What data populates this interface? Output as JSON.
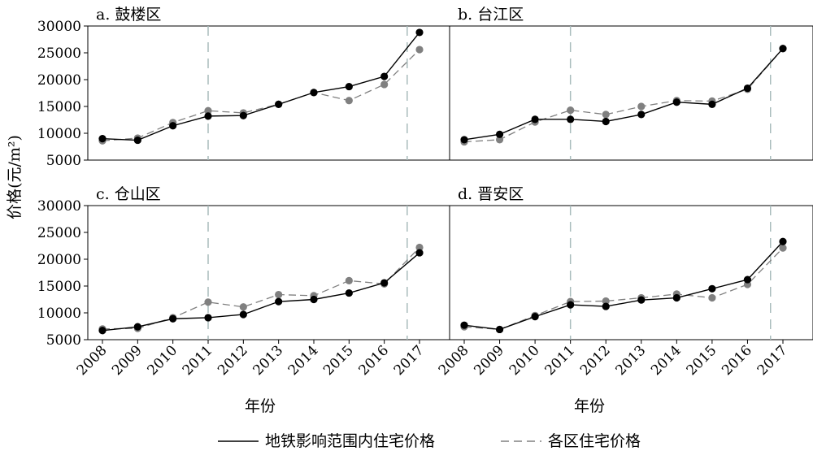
{
  "figure": {
    "ylabel": "价格(元/m²)",
    "xlabel": "年份",
    "legend": [
      {
        "label": "地铁影响范围内住宅价格",
        "style": "solid",
        "color": "#000000"
      },
      {
        "label": "各区住宅价格",
        "style": "dashed",
        "color": "#808080"
      }
    ],
    "colors": {
      "metro": "#000000",
      "district": "#808080",
      "vline": "#a9bcbc"
    }
  },
  "chart_data": [
    {
      "type": "line",
      "title": "a. 鼓楼区",
      "x": [
        2008,
        2009,
        2010,
        2011,
        2012,
        2013,
        2014,
        2015,
        2016,
        2017
      ],
      "ylim": [
        5000,
        30000
      ],
      "yticks": [
        5000,
        10000,
        15000,
        20000,
        25000,
        30000
      ],
      "vlines": [
        2011,
        2016.65
      ],
      "series": [
        {
          "name": "地铁影响范围内住宅价格",
          "values": [
            9000,
            8700,
            11400,
            13200,
            13300,
            15400,
            17600,
            18700,
            20600,
            28800
          ]
        },
        {
          "name": "各区住宅价格",
          "values": [
            8600,
            9100,
            12000,
            14200,
            13800,
            15400,
            17600,
            16100,
            19100,
            25600
          ]
        }
      ]
    },
    {
      "type": "line",
      "title": "b. 台江区",
      "x": [
        2008,
        2009,
        2010,
        2011,
        2012,
        2013,
        2014,
        2015,
        2016,
        2017
      ],
      "ylim": [
        5000,
        30000
      ],
      "yticks": [
        5000,
        10000,
        15000,
        20000,
        25000,
        30000
      ],
      "vlines": [
        2011,
        2016.65
      ],
      "series": [
        {
          "name": "地铁影响范围内住宅价格",
          "values": [
            8800,
            9800,
            12600,
            12600,
            12200,
            13500,
            15800,
            15400,
            18400,
            25800
          ]
        },
        {
          "name": "各区住宅价格",
          "values": [
            8400,
            8800,
            12100,
            14300,
            13500,
            15000,
            16100,
            16000,
            18200,
            25800
          ]
        }
      ]
    },
    {
      "type": "line",
      "title": "c. 仓山区",
      "x": [
        2008,
        2009,
        2010,
        2011,
        2012,
        2013,
        2014,
        2015,
        2016,
        2017
      ],
      "ylim": [
        5000,
        30000
      ],
      "yticks": [
        5000,
        10000,
        15000,
        20000,
        25000,
        30000
      ],
      "vlines": [
        2011,
        2016.65
      ],
      "series": [
        {
          "name": "地铁影响范围内住宅价格",
          "values": [
            6700,
            7400,
            8900,
            9100,
            9700,
            12100,
            12500,
            13700,
            15600,
            21200
          ]
        },
        {
          "name": "各区住宅价格",
          "values": [
            7000,
            7100,
            9100,
            12000,
            11100,
            13400,
            13200,
            16000,
            15400,
            22200
          ]
        }
      ]
    },
    {
      "type": "line",
      "title": "d. 晋安区",
      "x": [
        2008,
        2009,
        2010,
        2011,
        2012,
        2013,
        2014,
        2015,
        2016,
        2017
      ],
      "ylim": [
        5000,
        30000
      ],
      "yticks": [
        5000,
        10000,
        15000,
        20000,
        25000,
        30000
      ],
      "vlines": [
        2011,
        2016.65
      ],
      "series": [
        {
          "name": "地铁影响范围内住宅价格",
          "values": [
            7700,
            6900,
            9300,
            11500,
            11200,
            12400,
            12800,
            14500,
            16200,
            23300
          ]
        },
        {
          "name": "各区住宅价格",
          "values": [
            7400,
            6900,
            9500,
            12100,
            12200,
            12800,
            13500,
            12800,
            15300,
            22100
          ]
        }
      ]
    }
  ]
}
